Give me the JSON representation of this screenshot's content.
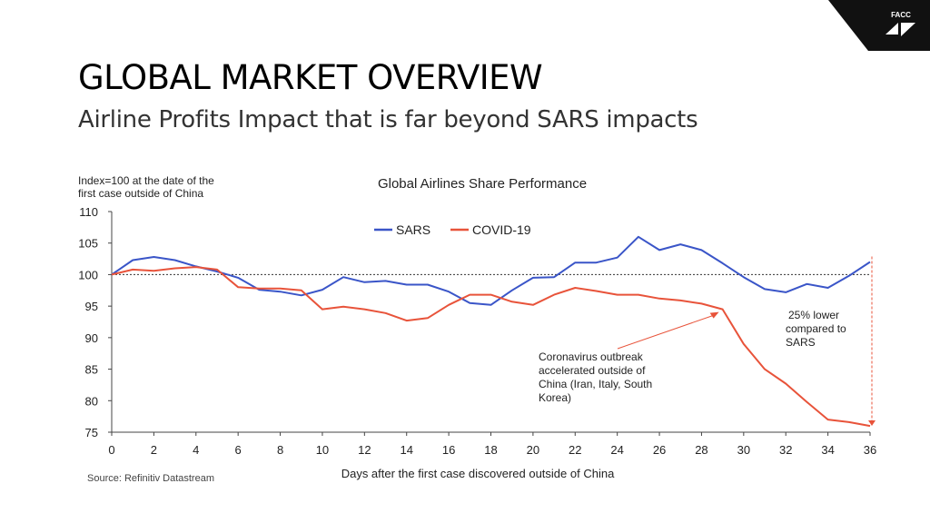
{
  "slide": {
    "title": "GLOBAL MARKET OVERVIEW",
    "subtitle": "Airline Profits Impact that is far beyond SARS impacts",
    "logo_text": "FACC",
    "source": "Source: Refinitiv Datastream"
  },
  "colors": {
    "sars": "#3a55c8",
    "covid": "#e8533a",
    "axis": "#444444",
    "logo_bg": "#111111"
  },
  "chart_data": {
    "type": "line",
    "title": "Global Airlines Share Performance",
    "ylabel_lines": [
      "Index=100 at the date of the",
      "first case  outside of China"
    ],
    "xlabel": "Days after the first case discovered outside of China",
    "xlim": [
      0,
      36
    ],
    "ylim": [
      75,
      110
    ],
    "xticks": [
      0,
      2,
      4,
      6,
      8,
      10,
      12,
      14,
      16,
      18,
      20,
      22,
      24,
      26,
      28,
      30,
      32,
      34,
      36
    ],
    "yticks": [
      75,
      80,
      85,
      90,
      95,
      100,
      105,
      110
    ],
    "reference_line": 100,
    "legend_position": "top-center",
    "series": [
      {
        "name": "SARS",
        "color_key": "sars",
        "x": [
          0,
          1,
          2,
          3,
          4,
          5,
          6,
          7,
          8,
          9,
          10,
          11,
          12,
          13,
          14,
          15,
          16,
          17,
          18,
          19,
          20,
          21,
          22,
          23,
          24,
          25,
          26,
          27,
          28,
          29,
          30,
          31,
          32,
          33,
          34,
          35,
          36
        ],
        "values": [
          100,
          102.3,
          102.8,
          102.3,
          101.3,
          100.5,
          99.5,
          97.6,
          97.3,
          96.7,
          97.6,
          99.6,
          98.8,
          99.0,
          98.4,
          98.4,
          97.3,
          95.5,
          95.2,
          97.5,
          99.5,
          99.6,
          101.9,
          101.9,
          102.7,
          106.0,
          103.9,
          104.8,
          103.9,
          101.8,
          99.6,
          97.7,
          97.2,
          98.5,
          97.9,
          99.8,
          102.0
        ]
      },
      {
        "name": "COVID-19",
        "color_key": "covid",
        "x": [
          0,
          1,
          2,
          3,
          4,
          5,
          6,
          7,
          8,
          9,
          10,
          11,
          12,
          13,
          14,
          15,
          16,
          17,
          18,
          19,
          20,
          21,
          22,
          23,
          24,
          25,
          26,
          27,
          28,
          29,
          30,
          31,
          32,
          33,
          34,
          35,
          36
        ],
        "values": [
          100,
          100.8,
          100.6,
          101.0,
          101.2,
          100.8,
          98.0,
          97.8,
          97.8,
          97.5,
          94.5,
          94.9,
          94.5,
          93.9,
          92.7,
          93.1,
          95.2,
          96.8,
          96.8,
          95.7,
          95.2,
          96.8,
          97.9,
          97.4,
          96.8,
          96.8,
          96.2,
          95.9,
          95.4,
          94.5,
          89.0,
          85.0,
          82.7,
          79.8,
          77.0,
          76.6,
          76.0
        ]
      }
    ],
    "annotations": [
      {
        "id": "gap",
        "lines": [
          "25% lower",
          "compared to",
          "SARS"
        ]
      },
      {
        "id": "outbreak",
        "lines": [
          "Coronavirus outbreak",
          "accelerated outside of",
          "China (Iran, Italy, South",
          "Korea)"
        ],
        "arrow_to_x": 29,
        "arrow_to_y": 94.5
      }
    ]
  }
}
